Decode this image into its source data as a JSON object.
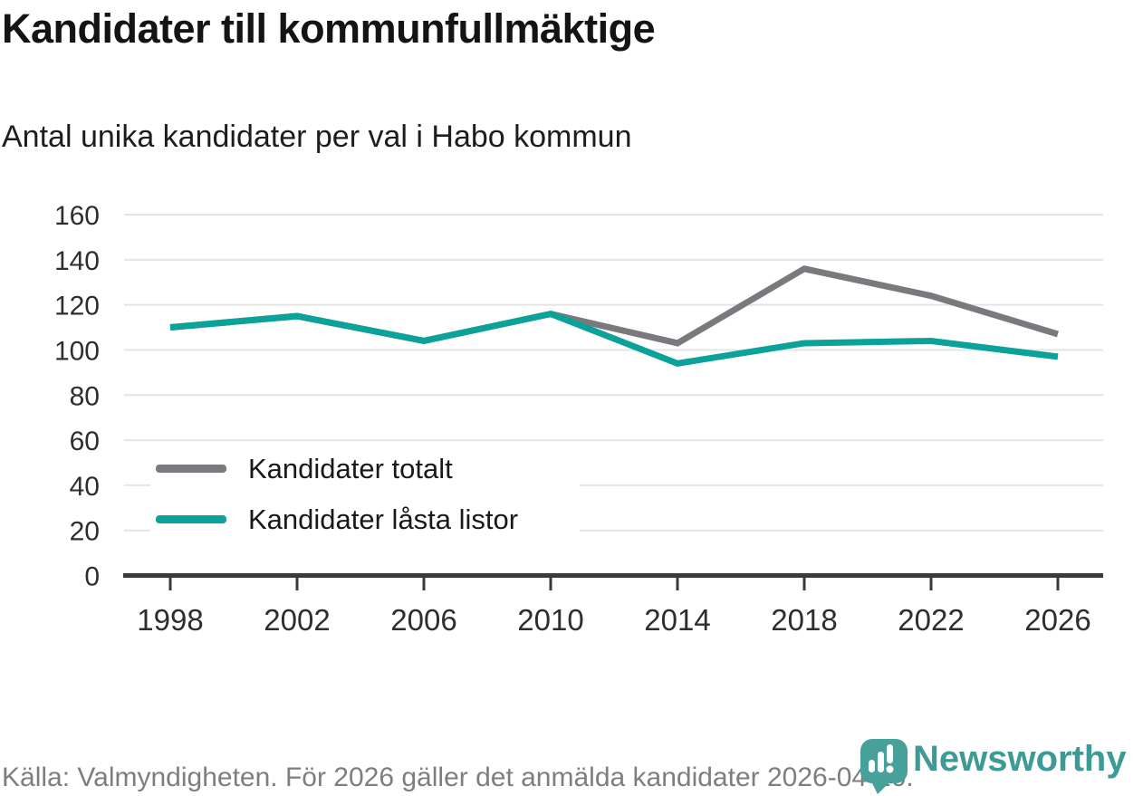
{
  "header": {
    "title": "Kandidater till kommunfullmäktige",
    "subtitle": "Antal unika kandidater per val i Habo kommun"
  },
  "chart_data": {
    "type": "line",
    "title": "Kandidater till kommunfullmäktige",
    "subtitle": "Antal unika kandidater per val i Habo kommun",
    "x": [
      1998,
      2002,
      2006,
      2010,
      2014,
      2018,
      2022,
      2026
    ],
    "series": [
      {
        "name": "Kandidater totalt",
        "color": "#7A7A7E",
        "values": [
          110,
          115,
          104,
          116,
          103,
          136,
          124,
          107
        ]
      },
      {
        "name": "Kandidater låsta listor",
        "color": "#0BA29A",
        "values": [
          110,
          115,
          104,
          116,
          94,
          103,
          104,
          97
        ]
      }
    ],
    "xlabel": "",
    "ylabel": "",
    "ylim": [
      0,
      160
    ],
    "ytick_step": 20,
    "yticks": [
      0,
      20,
      40,
      60,
      80,
      100,
      120,
      140,
      160
    ],
    "grid": "horizontal-only",
    "grid_color": "#E4E4E4",
    "axis_color": "#3A3A3A",
    "tick_label_color": "#2E2E2E",
    "legend_position": "inside-lower-left"
  },
  "footer": {
    "source": "Källa: Valmyndigheten. För 2026 gäller det anmälda kandidater 2026-04-10."
  },
  "logo": {
    "wordmark": "Newsworthy",
    "icon": "newsworthy-pin-barchart-icon",
    "icon_color": "#47A09A",
    "wordmark_color": "#3E9A94"
  }
}
